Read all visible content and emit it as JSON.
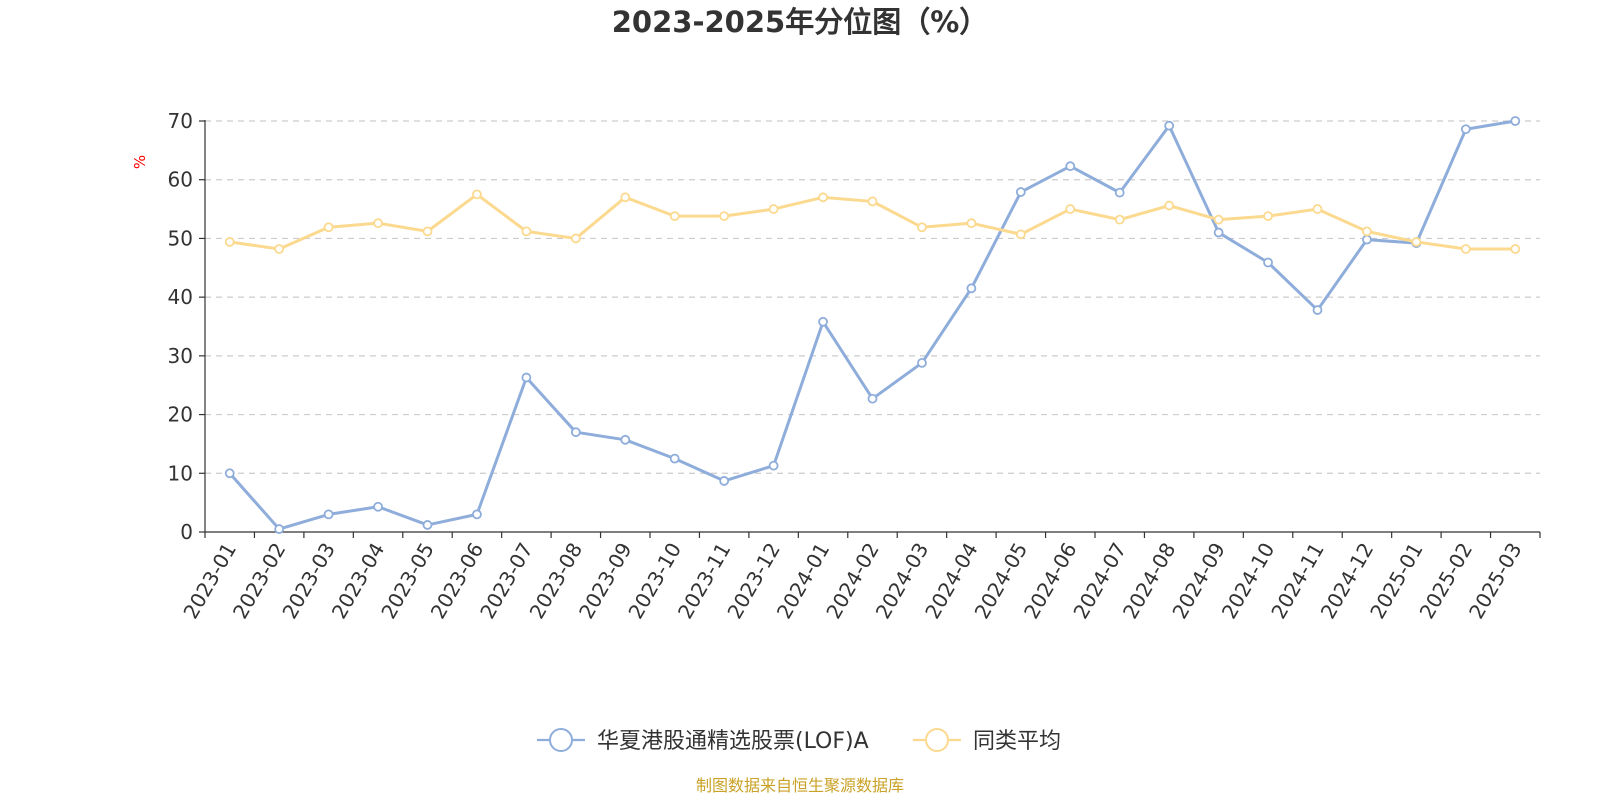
{
  "chart_data": {
    "type": "line",
    "title": "2023-2025年分位图（%）",
    "ylabel": "%",
    "ylim": [
      0,
      70
    ],
    "yticks": [
      0,
      10,
      20,
      30,
      40,
      50,
      60,
      70
    ],
    "grid": true,
    "legend_position": "bottom-center",
    "x": [
      "2023-01",
      "2023-02",
      "2023-03",
      "2023-04",
      "2023-05",
      "2023-06",
      "2023-07",
      "2023-08",
      "2023-09",
      "2023-10",
      "2023-11",
      "2023-12",
      "2024-01",
      "2024-02",
      "2024-03",
      "2024-04",
      "2024-05",
      "2024-06",
      "2024-07",
      "2024-08",
      "2024-09",
      "2024-10",
      "2024-11",
      "2024-12",
      "2025-01",
      "2025-02",
      "2025-03"
    ],
    "series": [
      {
        "name": "华夏港股通精选股票(LOF)A",
        "color": "#8faddb",
        "values": [
          10.0,
          0.5,
          3.0,
          4.3,
          1.2,
          3.0,
          26.3,
          17.0,
          15.7,
          12.5,
          8.7,
          11.3,
          35.8,
          22.7,
          28.8,
          41.5,
          57.9,
          62.3,
          57.8,
          69.2,
          51.0,
          45.9,
          37.8,
          49.8,
          49.2,
          68.6,
          70.0
        ]
      },
      {
        "name": "同类平均",
        "color": "#fbd98f",
        "values": [
          49.4,
          48.2,
          51.9,
          52.6,
          51.2,
          57.5,
          51.2,
          50.0,
          57.0,
          53.8,
          53.8,
          55.0,
          57.0,
          56.3,
          51.9,
          52.6,
          50.7,
          55.0,
          53.2,
          55.6,
          53.2,
          53.8,
          55.0,
          51.2,
          49.4,
          48.2,
          48.2
        ]
      }
    ],
    "source": "制图数据来自恒生聚源数据库",
    "source_color": "#c9a227",
    "unit_color": "#ff0000"
  }
}
